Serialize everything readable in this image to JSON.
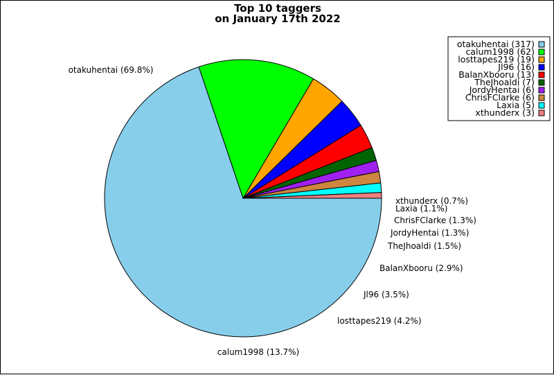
{
  "chart_data": {
    "type": "pie",
    "title": "Top 10 taggers",
    "subtitle": "on January 17th 2022",
    "slices": [
      {
        "name": "otakuhentai",
        "value": 317,
        "percent_label": "otakuhentai (69.8%)",
        "legend_label": "otakuhentai (317)",
        "color": "#87ceeb"
      },
      {
        "name": "calum1998",
        "value": 62,
        "percent_label": "calum1998 (13.7%)",
        "legend_label": "calum1998 (62)",
        "color": "#00ff00"
      },
      {
        "name": "losttapes219",
        "value": 19,
        "percent_label": "losttapes219 (4.2%)",
        "legend_label": "losttapes219 (19)",
        "color": "#ffa500"
      },
      {
        "name": "Jl96",
        "value": 16,
        "percent_label": "Jl96 (3.5%)",
        "legend_label": "Jl96 (16)",
        "color": "#0000ff"
      },
      {
        "name": "BalanXbooru",
        "value": 13,
        "percent_label": "BalanXbooru (2.9%)",
        "legend_label": "BalanXbooru (13)",
        "color": "#ff0000"
      },
      {
        "name": "TheJhoaldi",
        "value": 7,
        "percent_label": "TheJhoaldi (1.5%)",
        "legend_label": "TheJhoaldi (7)",
        "color": "#006400"
      },
      {
        "name": "JordyHentai",
        "value": 6,
        "percent_label": "JordyHentai (1.3%)",
        "legend_label": "JordyHentai (6)",
        "color": "#a020f0"
      },
      {
        "name": "ChrisFClarke",
        "value": 6,
        "percent_label": "ChrisFClarke (1.3%)",
        "legend_label": "ChrisFClarke (6)",
        "color": "#cd853f"
      },
      {
        "name": "Laxia",
        "value": 5,
        "percent_label": "Laxia (1.1%)",
        "legend_label": "Laxia (5)",
        "color": "#00ffff"
      },
      {
        "name": "xthunderx",
        "value": 3,
        "percent_label": "xthunderx (0.7%)",
        "legend_label": "xthunderx (3)",
        "color": "#f08080"
      }
    ],
    "legend_position": "top-right",
    "start_angle": "3 o'clock",
    "direction": "clockwise"
  }
}
